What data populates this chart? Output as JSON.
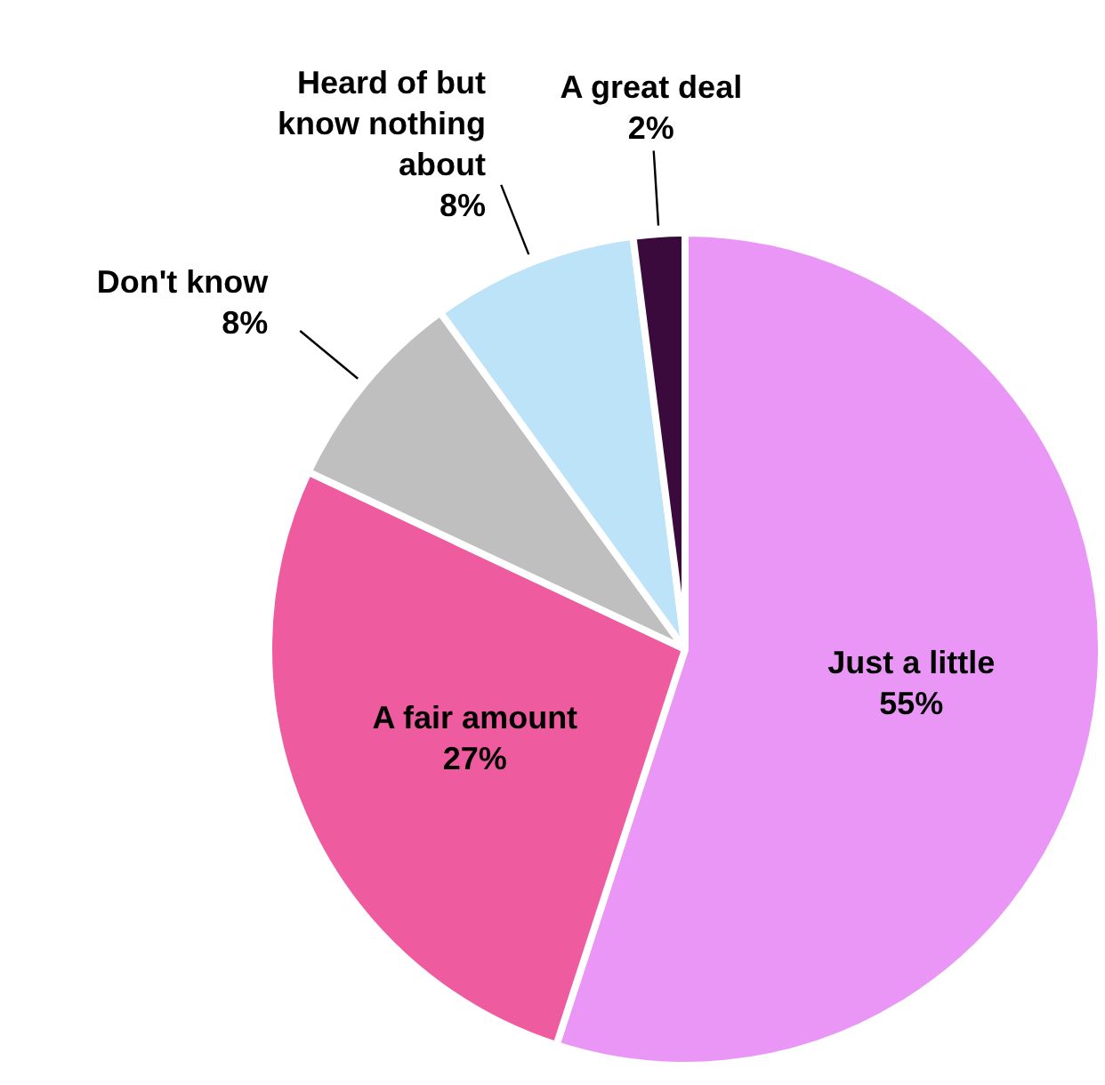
{
  "chart_data": {
    "type": "pie",
    "categories": [
      "Just a little",
      "A fair amount",
      "Don't know",
      "Heard of but know nothing about",
      "A great deal"
    ],
    "values": [
      55,
      27,
      8,
      8,
      2
    ],
    "colors": [
      "#ea96f6",
      "#ee5b9f",
      "#bfbfbf",
      "#bde3f8",
      "#3b0a3c"
    ],
    "value_labels": [
      "55%",
      "27%",
      "8%",
      "8%",
      "2%"
    ],
    "legend": false
  }
}
